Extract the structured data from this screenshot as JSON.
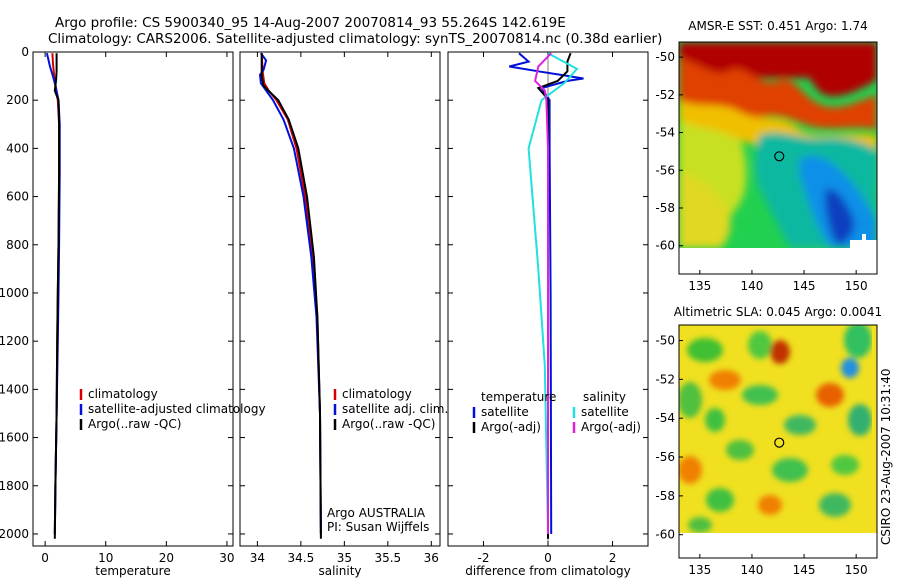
{
  "title": {
    "line1": "Argo profile: CS 5900340_95 14-Aug-2007 20070814_93 55.264S 142.619E",
    "line2": "Climatology: CARS2006. Satellite-adjusted climatology: synTS_20070814.nc (0.38d earlier)"
  },
  "stamp": "CSIRO 23-Aug-2007 10:31:40",
  "colors": {
    "climatology": "#d40000",
    "satellite": "#0010d8",
    "argo": "#000000",
    "sal_satellite": "#22e0e0",
    "sal_argo": "#e020e0"
  },
  "chart_data": [
    {
      "type": "line",
      "xlabel": "temperature",
      "ylabel": "",
      "xlim": [
        -2,
        31
      ],
      "ylim": [
        2050,
        0
      ],
      "xticks": [
        0,
        10,
        20,
        30
      ],
      "yticks": [
        0,
        200,
        400,
        600,
        800,
        1000,
        1200,
        1400,
        1600,
        1800,
        2000
      ],
      "legend": [
        "climatology",
        "satellite-adjusted climatology",
        "Argo(..raw -QC)"
      ],
      "series": [
        {
          "name": "climatology",
          "color_key": "climatology",
          "points": [
            [
              1.2,
              5
            ],
            [
              1.3,
              50
            ],
            [
              1.5,
              100
            ],
            [
              1.8,
              150
            ],
            [
              2.1,
              200
            ],
            [
              2.3,
              300
            ],
            [
              2.3,
              500
            ],
            [
              2.2,
              800
            ],
            [
              2.1,
              1000
            ],
            [
              2.0,
              1200
            ],
            [
              1.9,
              1500
            ],
            [
              1.7,
              1800
            ],
            [
              1.6,
              2000
            ]
          ]
        },
        {
          "name": "satellite-adjusted climatology",
          "color_key": "satellite",
          "points": [
            [
              0.3,
              5
            ],
            [
              0.8,
              60
            ],
            [
              1.4,
              110
            ],
            [
              1.8,
              150
            ],
            [
              2.2,
              200
            ],
            [
              2.4,
              300
            ],
            [
              2.4,
              500
            ],
            [
              2.3,
              800
            ],
            [
              2.2,
              1000
            ],
            [
              2.1,
              1200
            ],
            [
              1.9,
              1500
            ],
            [
              1.7,
              1800
            ],
            [
              1.6,
              2000
            ]
          ]
        },
        {
          "name": "Argo(..raw -QC)",
          "color_key": "argo",
          "points": [
            [
              1.9,
              5
            ],
            [
              1.9,
              40
            ],
            [
              1.9,
              80
            ],
            [
              1.8,
              120
            ],
            [
              1.6,
              160
            ],
            [
              1.9,
              180
            ],
            [
              2.2,
              200
            ],
            [
              2.3,
              300
            ],
            [
              2.3,
              500
            ],
            [
              2.2,
              800
            ],
            [
              2.1,
              1000
            ],
            [
              2.0,
              1200
            ],
            [
              1.9,
              1500
            ],
            [
              1.7,
              1800
            ],
            [
              1.6,
              2020
            ]
          ]
        }
      ]
    },
    {
      "type": "line",
      "xlabel": "salinity",
      "ylabel": "",
      "xlim": [
        33.8,
        36.1
      ],
      "ylim": [
        2050,
        0
      ],
      "xticks": [
        34,
        34.5,
        35,
        35.5,
        36
      ],
      "legend": [
        "climatology",
        "satellite adj. clim.",
        "Argo(..raw -QC)"
      ],
      "annotations": [
        "Argo AUSTRALIA",
        "PI: Susan Wijffels"
      ],
      "series": [
        {
          "name": "climatology",
          "color_key": "climatology",
          "points": [
            [
              34.05,
              5
            ],
            [
              34.06,
              80
            ],
            [
              34.08,
              130
            ],
            [
              34.13,
              160
            ],
            [
              34.22,
              200
            ],
            [
              34.35,
              280
            ],
            [
              34.45,
              400
            ],
            [
              34.55,
              600
            ],
            [
              34.63,
              850
            ],
            [
              34.69,
              1100
            ],
            [
              34.72,
              1500
            ],
            [
              34.73,
              2000
            ]
          ]
        },
        {
          "name": "satellite adj. clim.",
          "color_key": "satellite",
          "points": [
            [
              34.04,
              5
            ],
            [
              34.1,
              35
            ],
            [
              34.07,
              75
            ],
            [
              34.03,
              95
            ],
            [
              34.04,
              130
            ],
            [
              34.1,
              160
            ],
            [
              34.18,
              200
            ],
            [
              34.3,
              280
            ],
            [
              34.42,
              400
            ],
            [
              34.53,
              600
            ],
            [
              34.62,
              850
            ],
            [
              34.68,
              1100
            ],
            [
              34.72,
              1500
            ],
            [
              34.73,
              2000
            ]
          ]
        },
        {
          "name": "Argo(..raw -QC)",
          "color_key": "argo",
          "points": [
            [
              34.05,
              5
            ],
            [
              34.05,
              100
            ],
            [
              34.07,
              140
            ],
            [
              34.14,
              165
            ],
            [
              34.24,
              200
            ],
            [
              34.36,
              280
            ],
            [
              34.47,
              400
            ],
            [
              34.57,
              600
            ],
            [
              34.65,
              850
            ],
            [
              34.69,
              1100
            ],
            [
              34.72,
              1500
            ],
            [
              34.73,
              2020
            ]
          ]
        }
      ]
    },
    {
      "type": "line",
      "xlabel": "difference from climatology",
      "ylabel": "",
      "xlim": [
        -3.1,
        3.1
      ],
      "ylim": [
        2050,
        0
      ],
      "xticks": [
        -2,
        0,
        2
      ],
      "legend_left_title": "temperature",
      "legend_right_title": "salinity",
      "legend": [
        "satellite",
        "Argo(-adj)",
        "satellite",
        "Argo(-adj)"
      ],
      "series": [
        {
          "name": "temperature satellite",
          "color_key": "satellite",
          "points": [
            [
              -0.9,
              5
            ],
            [
              -0.6,
              40
            ],
            [
              -1.2,
              60
            ],
            [
              -0.3,
              80
            ],
            [
              0.4,
              95
            ],
            [
              1.1,
              110
            ],
            [
              0.6,
              120
            ],
            [
              -0.2,
              150
            ],
            [
              0.05,
              200
            ],
            [
              0.05,
              400
            ],
            [
              0.08,
              1000
            ],
            [
              0.1,
              2000
            ]
          ]
        },
        {
          "name": "temperature Argo(-adj)",
          "color_key": "argo",
          "points": [
            [
              0.7,
              5
            ],
            [
              0.6,
              40
            ],
            [
              0.6,
              80
            ],
            [
              0.3,
              120
            ],
            [
              -0.3,
              150
            ],
            [
              -0.1,
              180
            ],
            [
              0.0,
              200
            ],
            [
              0.0,
              400
            ],
            [
              0.0,
              1000
            ],
            [
              0.0,
              2020
            ]
          ]
        },
        {
          "name": "salinity satellite",
          "color_key": "sal_satellite",
          "points": [
            [
              0.0,
              5
            ],
            [
              0.9,
              70
            ],
            [
              0.5,
              130
            ],
            [
              -0.2,
              200
            ],
            [
              -0.6,
              400
            ],
            [
              -0.3,
              900
            ],
            [
              -0.1,
              1300
            ],
            [
              0.0,
              2000
            ]
          ]
        },
        {
          "name": "salinity Argo(-adj)",
          "color_key": "sal_argo",
          "points": [
            [
              0.1,
              5
            ],
            [
              -0.3,
              60
            ],
            [
              -0.4,
              120
            ],
            [
              -0.1,
              160
            ],
            [
              -0.05,
              200
            ],
            [
              0.0,
              400
            ],
            [
              0.0,
              2000
            ]
          ]
        }
      ]
    },
    {
      "type": "heatmap",
      "title": "AMSR-E SST: 0.451 Argo: 1.74",
      "xlim": [
        133,
        152
      ],
      "ylim": [
        -61.5,
        -49.2
      ],
      "xticks": [
        135,
        140,
        145,
        150
      ],
      "yticks": [
        -50,
        -52,
        -54,
        -56,
        -58,
        -60
      ],
      "marker": {
        "lon": 142.62,
        "lat": -55.26
      }
    },
    {
      "type": "heatmap",
      "title": "Altimetric SLA: 0.045 Argo: 0.0041",
      "xlim": [
        133,
        152
      ],
      "ylim": [
        -61.2,
        -49.2
      ],
      "xticks": [
        135,
        140,
        145,
        150
      ],
      "yticks": [
        -50,
        -52,
        -54,
        -56,
        -58,
        -60
      ],
      "marker": {
        "lon": 142.62,
        "lat": -55.26
      }
    }
  ]
}
